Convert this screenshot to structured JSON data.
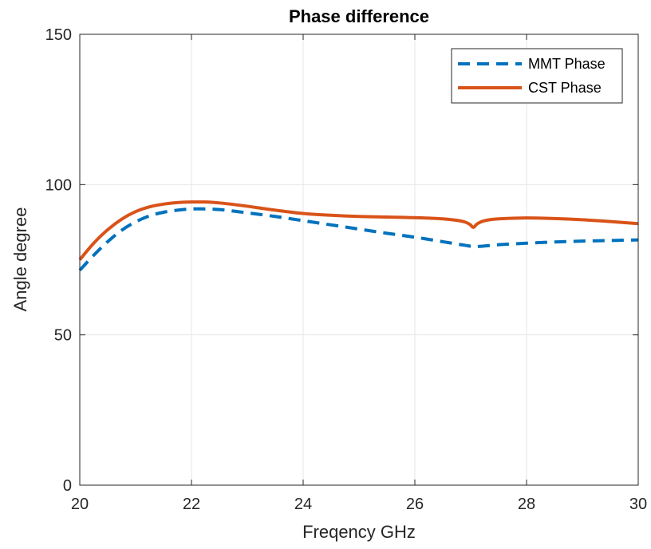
{
  "chart_data": {
    "type": "line",
    "title": "Phase difference",
    "xlabel": "Freqency GHz",
    "ylabel": "Angle degree",
    "xlim": [
      20,
      30
    ],
    "ylim": [
      0,
      150
    ],
    "xticks": [
      20,
      22,
      24,
      26,
      28,
      30
    ],
    "yticks": [
      0,
      50,
      100,
      150
    ],
    "grid": true,
    "legend_position": "top-right",
    "series": [
      {
        "name": "MMT Phase",
        "color": "#0072BD",
        "line_style": "dashed",
        "x": [
          20.0,
          20.25,
          20.5,
          20.75,
          21.0,
          21.25,
          21.5,
          21.75,
          22.0,
          22.25,
          22.5,
          22.75,
          23.0,
          23.5,
          24.0,
          24.5,
          25.0,
          25.5,
          26.0,
          26.5,
          26.9,
          27.1,
          27.5,
          28.0,
          28.5,
          29.0,
          29.5,
          30.0
        ],
        "y": [
          71.5,
          76.5,
          81.0,
          84.8,
          87.6,
          89.6,
          90.8,
          91.5,
          91.9,
          91.9,
          91.7,
          91.2,
          90.6,
          89.4,
          88.0,
          86.6,
          85.2,
          83.8,
          82.5,
          81.0,
          79.8,
          79.4,
          80.0,
          80.5,
          80.9,
          81.2,
          81.4,
          81.6
        ]
      },
      {
        "name": "CST Phase",
        "color": "#D95319",
        "line_style": "solid",
        "x": [
          20.0,
          20.25,
          20.5,
          20.75,
          21.0,
          21.25,
          21.5,
          21.75,
          22.0,
          22.25,
          22.5,
          22.75,
          23.0,
          23.5,
          24.0,
          24.5,
          25.0,
          25.5,
          26.0,
          26.5,
          26.85,
          26.98,
          27.05,
          27.12,
          27.25,
          27.5,
          28.0,
          28.5,
          29.0,
          29.5,
          30.0
        ],
        "y": [
          75.0,
          80.5,
          85.0,
          88.5,
          91.0,
          92.6,
          93.5,
          94.0,
          94.2,
          94.2,
          93.9,
          93.4,
          92.8,
          91.5,
          90.4,
          89.8,
          89.4,
          89.2,
          89.0,
          88.6,
          87.8,
          86.8,
          85.8,
          87.0,
          88.0,
          88.6,
          88.9,
          88.7,
          88.3,
          87.7,
          87.0
        ]
      }
    ]
  }
}
